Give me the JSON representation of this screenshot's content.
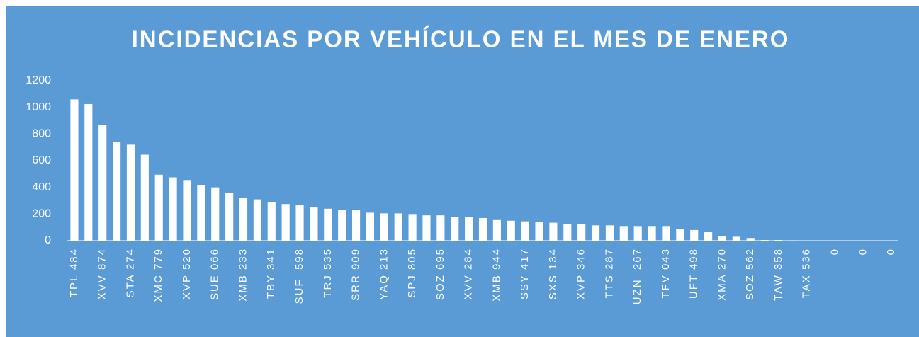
{
  "chart_data": {
    "type": "bar",
    "title": "INCIDENCIAS POR VEHÍCULO EN EL MES DE ENERO",
    "categories": [
      "TPL 484",
      null,
      "XVV 874",
      null,
      "STA 274",
      null,
      "XMC 779",
      null,
      "XVP 520",
      null,
      "SUE 066",
      null,
      "XMB 233",
      null,
      "TBY 341",
      null,
      "SUF  598",
      null,
      "TRJ 535",
      null,
      "SRR 909",
      null,
      "YAQ 213",
      null,
      "SPJ 805",
      null,
      "SOZ 695",
      null,
      "XVV 284",
      null,
      "XMB 944",
      null,
      "SSY 417",
      null,
      "SXS 134",
      null,
      "XVP 346",
      null,
      "TTS 287",
      null,
      "UZN  267",
      null,
      "TFV 043",
      null,
      "UFT 498",
      null,
      "XMA 270",
      null,
      "SOZ 562",
      null,
      "TAW 358",
      null,
      "TAX 536",
      null,
      "0",
      null,
      "0",
      null,
      "0"
    ],
    "values": [
      1060,
      1025,
      870,
      740,
      720,
      645,
      495,
      475,
      455,
      415,
      400,
      360,
      320,
      310,
      290,
      275,
      265,
      250,
      240,
      230,
      230,
      210,
      205,
      205,
      200,
      190,
      190,
      180,
      175,
      170,
      155,
      150,
      145,
      140,
      135,
      125,
      125,
      115,
      115,
      110,
      110,
      110,
      110,
      85,
      80,
      65,
      35,
      30,
      20,
      5,
      5,
      3,
      2,
      1,
      1,
      0,
      0,
      0,
      0
    ],
    "color": "#ffffff",
    "background": "#5b9bd5",
    "ylim": [
      0,
      1200
    ],
    "yticks": [
      0,
      200,
      400,
      600,
      800,
      1000,
      1200
    ],
    "grid": false
  }
}
